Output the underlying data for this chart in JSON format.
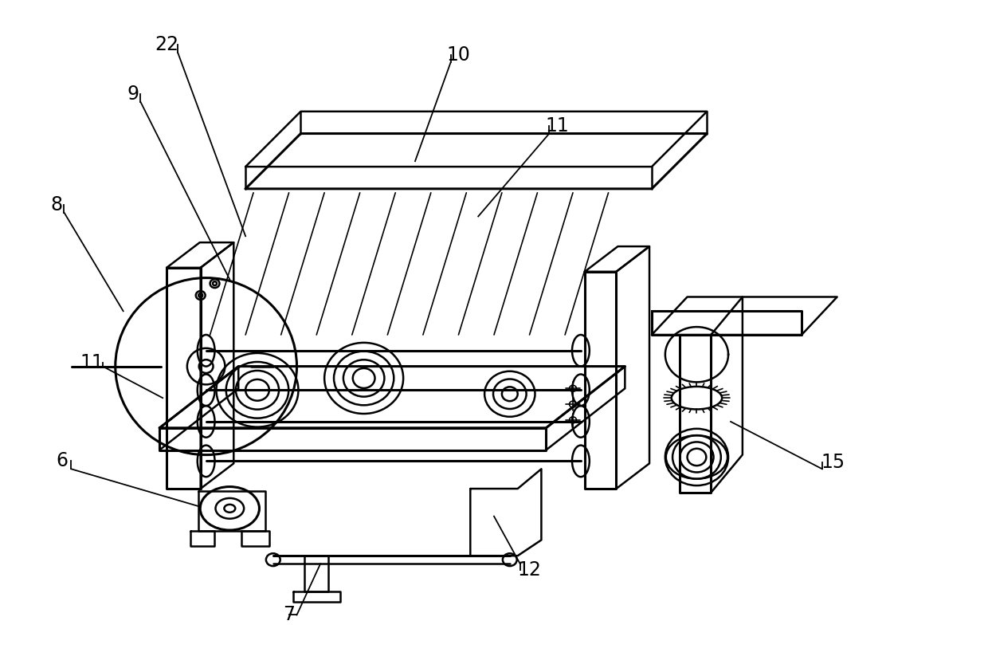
{
  "bg_color": "#ffffff",
  "line_color": "#000000",
  "lw_main": 1.8,
  "lw_thick": 2.2,
  "lw_thin": 1.2,
  "fig_width": 12.4,
  "fig_height": 8.38,
  "dpi": 100
}
